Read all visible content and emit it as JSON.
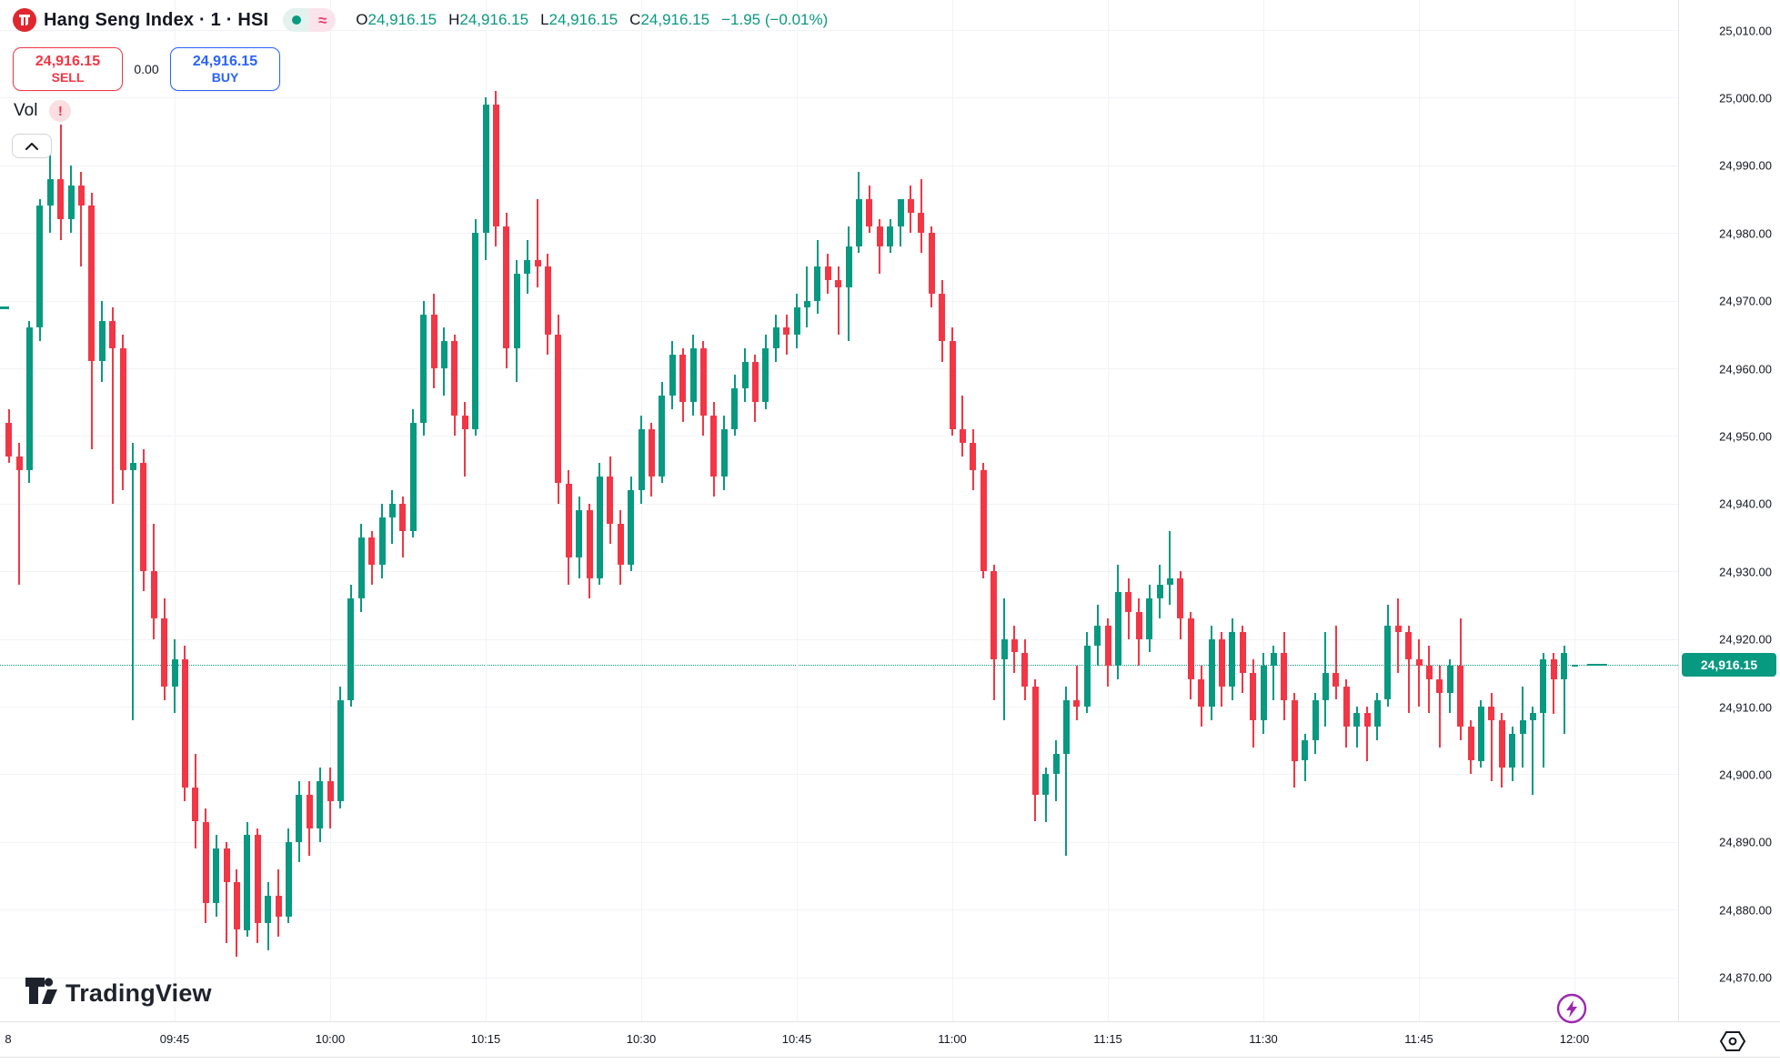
{
  "header": {
    "symbol_title": "Hang Seng Index · 1 · HSI",
    "status_pill": {
      "dot": "market-open-dot",
      "approx_symbol": "≈"
    },
    "ohlc": {
      "o_label": "O",
      "o_value": "24,916.15",
      "h_label": "H",
      "h_value": "24,916.15",
      "l_label": "L",
      "l_value": "24,916.15",
      "c_label": "C",
      "c_value": "24,916.15",
      "change": "−1.95 (−0.01%)"
    }
  },
  "trade_panel": {
    "sell": {
      "price": "24,916.15",
      "label": "SELL"
    },
    "spread": "0.00",
    "buy": {
      "price": "24,916.15",
      "label": "BUY"
    }
  },
  "volume_row": {
    "label": "Vol",
    "warning_badge": "!"
  },
  "watermark": {
    "text": "TradingView"
  },
  "price_axis": {
    "labels": [
      "25,010.00",
      "25,000.00",
      "24,990.00",
      "24,980.00",
      "24,970.00",
      "24,960.00",
      "24,950.00",
      "24,940.00",
      "24,930.00",
      "24,920.00",
      "24,910.00",
      "24,900.00",
      "24,890.00",
      "24,880.00",
      "24,870.00"
    ],
    "current_price_tag": "24,916.15"
  },
  "time_axis": {
    "edge_label": "8",
    "ticks": [
      "09:45",
      "10:00",
      "10:15",
      "10:30",
      "10:45",
      "11:00",
      "11:15",
      "11:30",
      "11:45",
      "12:00"
    ]
  },
  "colors": {
    "up": "#089981",
    "down": "#f23645",
    "accent": "#089981",
    "sell_red": "#f23645",
    "buy_blue": "#2962ff",
    "grid": "#f2f3f7",
    "text": "#131722",
    "purple": "#9c27b0"
  },
  "chart_data": {
    "type": "candlestick",
    "title": "Hang Seng Index 1-minute candles",
    "interval": "1m",
    "start_time": "09:29",
    "end_time": "12:00",
    "y_axis_range": [
      24863,
      25010
    ],
    "price_gridline_step": 10,
    "time_gridline_step_minutes": 15,
    "current_price": 24916.15,
    "legend_position": "top-left",
    "candles_note": "each row = [open, high, low, close], 1 bar per minute from 09:29 to 12:00, values estimated from chart",
    "candles": [
      [
        24952,
        24954,
        24946,
        24947
      ],
      [
        24947,
        24949,
        24928,
        24945
      ],
      [
        24945,
        24967,
        24943,
        24966
      ],
      [
        24966,
        24985,
        24964,
        24984
      ],
      [
        24984,
        24993,
        24980,
        24988
      ],
      [
        24988,
        24996,
        24979,
        24982
      ],
      [
        24982,
        24990,
        24980,
        24987
      ],
      [
        24987,
        24989,
        24975,
        24984
      ],
      [
        24984,
        24986,
        24948,
        24961
      ],
      [
        24961,
        24970,
        24958,
        24967
      ],
      [
        24967,
        24969,
        24940,
        24963
      ],
      [
        24963,
        24965,
        24942,
        24945
      ],
      [
        24945,
        24949,
        24908,
        24946
      ],
      [
        24946,
        24948,
        24927,
        24930
      ],
      [
        24930,
        24937,
        24920,
        24923
      ],
      [
        24923,
        24926,
        24911,
        24913
      ],
      [
        24913,
        24920,
        24909,
        24917
      ],
      [
        24917,
        24919,
        24896,
        24898
      ],
      [
        24898,
        24903,
        24889,
        24893
      ],
      [
        24893,
        24895,
        24878,
        24881
      ],
      [
        24881,
        24891,
        24879,
        24889
      ],
      [
        24889,
        24890,
        24875,
        24884
      ],
      [
        24884,
        24886,
        24873,
        24877
      ],
      [
        24877,
        24893,
        24876,
        24891
      ],
      [
        24891,
        24892,
        24875,
        24878
      ],
      [
        24878,
        24884,
        24874,
        24882
      ],
      [
        24882,
        24886,
        24876,
        24879
      ],
      [
        24879,
        24892,
        24878,
        24890
      ],
      [
        24890,
        24899,
        24887,
        24897
      ],
      [
        24897,
        24899,
        24888,
        24892
      ],
      [
        24892,
        24901,
        24890,
        24899
      ],
      [
        24899,
        24901,
        24892,
        24896
      ],
      [
        24896,
        24913,
        24895,
        24911
      ],
      [
        24911,
        24928,
        24910,
        24926
      ],
      [
        24926,
        24937,
        24924,
        24935
      ],
      [
        24935,
        24936,
        24928,
        24931
      ],
      [
        24931,
        24940,
        24929,
        24938
      ],
      [
        24938,
        24942,
        24934,
        24940
      ],
      [
        24940,
        24941,
        24932,
        24936
      ],
      [
        24936,
        24954,
        24935,
        24952
      ],
      [
        24952,
        24970,
        24950,
        24968
      ],
      [
        24968,
        24971,
        24957,
        24960
      ],
      [
        24960,
        24966,
        24956,
        24964
      ],
      [
        24964,
        24965,
        24950,
        24953
      ],
      [
        24953,
        24955,
        24944,
        24951
      ],
      [
        24951,
        24982,
        24950,
        24980
      ],
      [
        24980,
        25000,
        24976,
        24999
      ],
      [
        24999,
        25001,
        24978,
        24981
      ],
      [
        24981,
        24983,
        24960,
        24963
      ],
      [
        24963,
        24976,
        24958,
        24974
      ],
      [
        24974,
        24979,
        24971,
        24976
      ],
      [
        24976,
        24985,
        24972,
        24975
      ],
      [
        24975,
        24977,
        24962,
        24965
      ],
      [
        24965,
        24968,
        24940,
        24943
      ],
      [
        24943,
        24945,
        24928,
        24932
      ],
      [
        24932,
        24941,
        24929,
        24939
      ],
      [
        24939,
        24940,
        24926,
        24929
      ],
      [
        24929,
        24946,
        24928,
        24944
      ],
      [
        24944,
        24947,
        24934,
        24937
      ],
      [
        24937,
        24939,
        24928,
        24931
      ],
      [
        24931,
        24944,
        24930,
        24942
      ],
      [
        24942,
        24953,
        24940,
        24951
      ],
      [
        24951,
        24952,
        24941,
        24944
      ],
      [
        24944,
        24958,
        24943,
        24956
      ],
      [
        24956,
        24964,
        24954,
        24962
      ],
      [
        24962,
        24963,
        24952,
        24955
      ],
      [
        24955,
        24965,
        24953,
        24963
      ],
      [
        24963,
        24964,
        24950,
        24953
      ],
      [
        24953,
        24955,
        24941,
        24944
      ],
      [
        24944,
        24953,
        24942,
        24951
      ],
      [
        24951,
        24959,
        24950,
        24957
      ],
      [
        24957,
        24963,
        24955,
        24961
      ],
      [
        24961,
        24962,
        24952,
        24955
      ],
      [
        24955,
        24965,
        24954,
        24963
      ],
      [
        24963,
        24968,
        24961,
        24966
      ],
      [
        24966,
        24968,
        24962,
        24965
      ],
      [
        24965,
        24971,
        24963,
        24969
      ],
      [
        24969,
        24975,
        24966,
        24970
      ],
      [
        24970,
        24979,
        24968,
        24975
      ],
      [
        24975,
        24977,
        24971,
        24973
      ],
      [
        24973,
        24975,
        24965,
        24972
      ],
      [
        24972,
        24981,
        24964,
        24978
      ],
      [
        24978,
        24989,
        24977,
        24985
      ],
      [
        24985,
        24987,
        24980,
        24981
      ],
      [
        24981,
        24982,
        24974,
        24978
      ],
      [
        24978,
        24982,
        24977,
        24981
      ],
      [
        24981,
        24985,
        24978,
        24985
      ],
      [
        24985,
        24987,
        24980,
        24983
      ],
      [
        24983,
        24988,
        24977,
        24980
      ],
      [
        24980,
        24981,
        24969,
        24971
      ],
      [
        24971,
        24973,
        24961,
        24964
      ],
      [
        24964,
        24966,
        24950,
        24951
      ],
      [
        24951,
        24956,
        24947,
        24949
      ],
      [
        24949,
        24951,
        24942,
        24945
      ],
      [
        24945,
        24946,
        24929,
        24930
      ],
      [
        24930,
        24931,
        24911,
        24917
      ],
      [
        24917,
        24926,
        24908,
        24920
      ],
      [
        24920,
        24922,
        24915,
        24918
      ],
      [
        24918,
        24920,
        24911,
        24913
      ],
      [
        24913,
        24914,
        24893,
        24897
      ],
      [
        24897,
        24901,
        24893,
        24900
      ],
      [
        24900,
        24905,
        24896,
        24903
      ],
      [
        24903,
        24913,
        24888,
        24911
      ],
      [
        24911,
        24916,
        24908,
        24910
      ],
      [
        24910,
        24921,
        24909,
        24919
      ],
      [
        24919,
        24925,
        24916,
        24922
      ],
      [
        24922,
        24923,
        24913,
        24916
      ],
      [
        24916,
        24931,
        24914,
        24927
      ],
      [
        24927,
        24929,
        24920,
        24924
      ],
      [
        24924,
        24926,
        24916,
        24920
      ],
      [
        24920,
        24928,
        24918,
        24926
      ],
      [
        24926,
        24931,
        24923,
        24928
      ],
      [
        24928,
        24936,
        24925,
        24929
      ],
      [
        24929,
        24930,
        24920,
        24923
      ],
      [
        24923,
        24924,
        24911,
        24914
      ],
      [
        24914,
        24916,
        24907,
        24910
      ],
      [
        24910,
        24922,
        24908,
        24920
      ],
      [
        24920,
        24921,
        24910,
        24913
      ],
      [
        24913,
        24923,
        24911,
        24921
      ],
      [
        24921,
        24922,
        24912,
        24915
      ],
      [
        24915,
        24917,
        24904,
        24908
      ],
      [
        24908,
        24918,
        24906,
        24916
      ],
      [
        24916,
        24919,
        24911,
        24918
      ],
      [
        24918,
        24921,
        24908,
        24911
      ],
      [
        24911,
        24912,
        24898,
        24902
      ],
      [
        24902,
        24906,
        24899,
        24905
      ],
      [
        24905,
        24912,
        24903,
        24911
      ],
      [
        24911,
        24921,
        24907,
        24915
      ],
      [
        24915,
        24922,
        24911,
        24913
      ],
      [
        24913,
        24914,
        24904,
        24907
      ],
      [
        24907,
        24910,
        24904,
        24909
      ],
      [
        24909,
        24910,
        24902,
        24907
      ],
      [
        24907,
        24912,
        24905,
        24911
      ],
      [
        24911,
        24925,
        24910,
        24922
      ],
      [
        24922,
        24926,
        24915,
        24921
      ],
      [
        24921,
        24922,
        24909,
        24917
      ],
      [
        24917,
        24920,
        24910,
        24916
      ],
      [
        24916,
        24919,
        24909,
        24914
      ],
      [
        24914,
        24916,
        24904,
        24912
      ],
      [
        24912,
        24917,
        24909,
        24916
      ],
      [
        24916,
        24923,
        24905,
        24907
      ],
      [
        24907,
        24908,
        24900,
        24902
      ],
      [
        24902,
        24911,
        24901,
        24910
      ],
      [
        24910,
        24912,
        24899,
        24908
      ],
      [
        24908,
        24909,
        24898,
        24901
      ],
      [
        24901,
        24907,
        24899,
        24906
      ],
      [
        24906,
        24913,
        24901,
        24908
      ],
      [
        24908,
        24910,
        24897,
        24909
      ],
      [
        24909,
        24918,
        24901,
        24917
      ],
      [
        24917,
        24918,
        24909,
        24914
      ],
      [
        24914,
        24919,
        24906,
        24918
      ],
      [
        24916.15,
        24916.15,
        24916.15,
        24916.15
      ]
    ]
  }
}
